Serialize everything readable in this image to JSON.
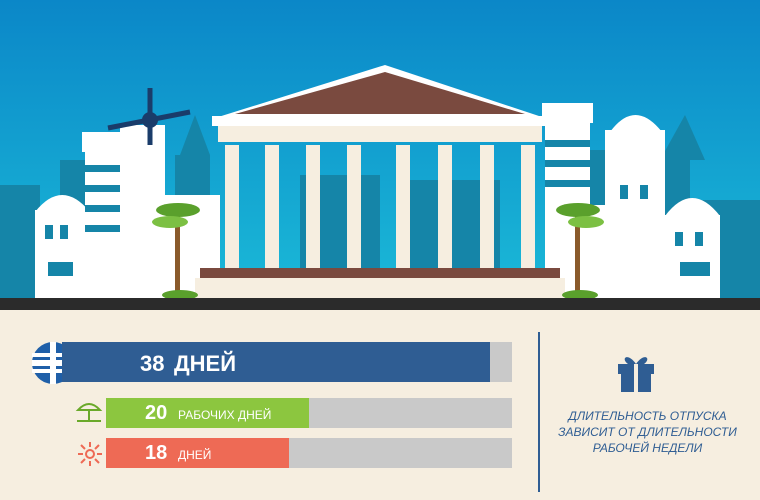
{
  "colors": {
    "sky_top": "#0a8ccc",
    "sky_bottom": "#19b8d6",
    "bar_main": "#2f5d93",
    "bar_green": "#8cc63f",
    "bar_red": "#ee6a55",
    "track": "#c9c9c9",
    "roof": "#7a4a3f",
    "cream": "#f6eee0"
  },
  "bars": [
    {
      "value_text": "38",
      "label": "ДНЕЙ",
      "value": 38,
      "max": 40,
      "icon": "greece-flag-icon"
    },
    {
      "value_text": "20",
      "label": "РАБОЧИХ ДНЕЙ",
      "value": 20,
      "max": 40,
      "icon": "beach-umbrella-icon"
    },
    {
      "value_text": "18",
      "label": "ДНЕЙ",
      "value": 18,
      "max": 40,
      "icon": "sun-icon"
    }
  ],
  "note": {
    "line1": "ДЛИТЕЛЬНОСТЬ ОТПУСКА",
    "line2": "ЗАВИСИТ ОТ ДЛИТЕЛЬНОСТИ",
    "line3": "РАБОЧЕЙ НЕДЕЛИ"
  },
  "icons": {
    "gift": "gift-icon"
  }
}
